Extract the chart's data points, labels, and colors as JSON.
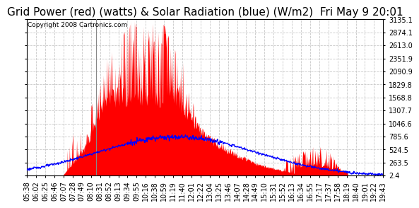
{
  "title": "Grid Power (red) (watts) & Solar Radiation (blue) (W/m2)  Fri May 9 20:01",
  "copyright": "Copyright 2008 Cartronics.com",
  "yticks": [
    2.4,
    263.5,
    524.5,
    785.6,
    1046.6,
    1307.7,
    1568.8,
    1829.8,
    2090.9,
    2351.9,
    2613.0,
    2874.1,
    3135.1
  ],
  "ymin": 2.4,
  "ymax": 3135.1,
  "xtick_labels": [
    "05:38",
    "06:02",
    "06:25",
    "06:46",
    "07:07",
    "07:28",
    "07:49",
    "08:10",
    "08:31",
    "08:52",
    "09:13",
    "09:34",
    "09:55",
    "10:16",
    "10:38",
    "10:59",
    "11:19",
    "11:40",
    "12:01",
    "12:22",
    "13:04",
    "13:25",
    "13:46",
    "14:07",
    "14:28",
    "14:49",
    "15:10",
    "15:31",
    "15:52",
    "16:13",
    "16:34",
    "16:55",
    "17:17",
    "17:37",
    "17:58",
    "18:19",
    "18:40",
    "19:01",
    "19:22",
    "19:43"
  ],
  "bg_color": "#ffffff",
  "plot_bg": "#ffffff",
  "red_color": "#ff0000",
  "blue_color": "#0000ff",
  "grid_color": "#c8c8c8",
  "title_fontsize": 11,
  "tick_fontsize": 7,
  "copyright_fontsize": 6.5,
  "n_points": 840
}
